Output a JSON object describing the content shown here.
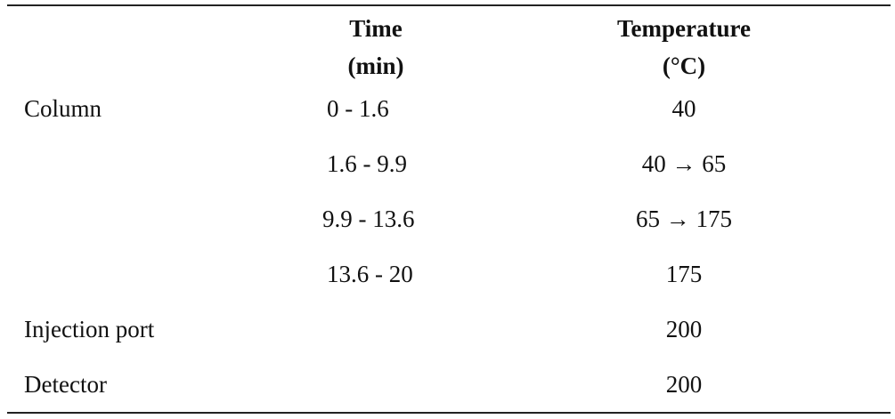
{
  "header": {
    "time": [
      "Time",
      "(min)"
    ],
    "temperature": [
      "Temperature",
      "(°C)"
    ]
  },
  "rows": [
    {
      "label": "Column",
      "time": "0 - 1.6",
      "temperature": "40"
    },
    {
      "time": "1.6 - 9.9",
      "temperature": "40 → 65"
    },
    {
      "time": "9.9 - 13.6",
      "temperature": "65 → 175"
    },
    {
      "time": "13.6 - 20",
      "temperature": "175"
    },
    {
      "label": "Injection port",
      "temperature": "200"
    },
    {
      "label": "Detector",
      "temperature": "200"
    }
  ]
}
